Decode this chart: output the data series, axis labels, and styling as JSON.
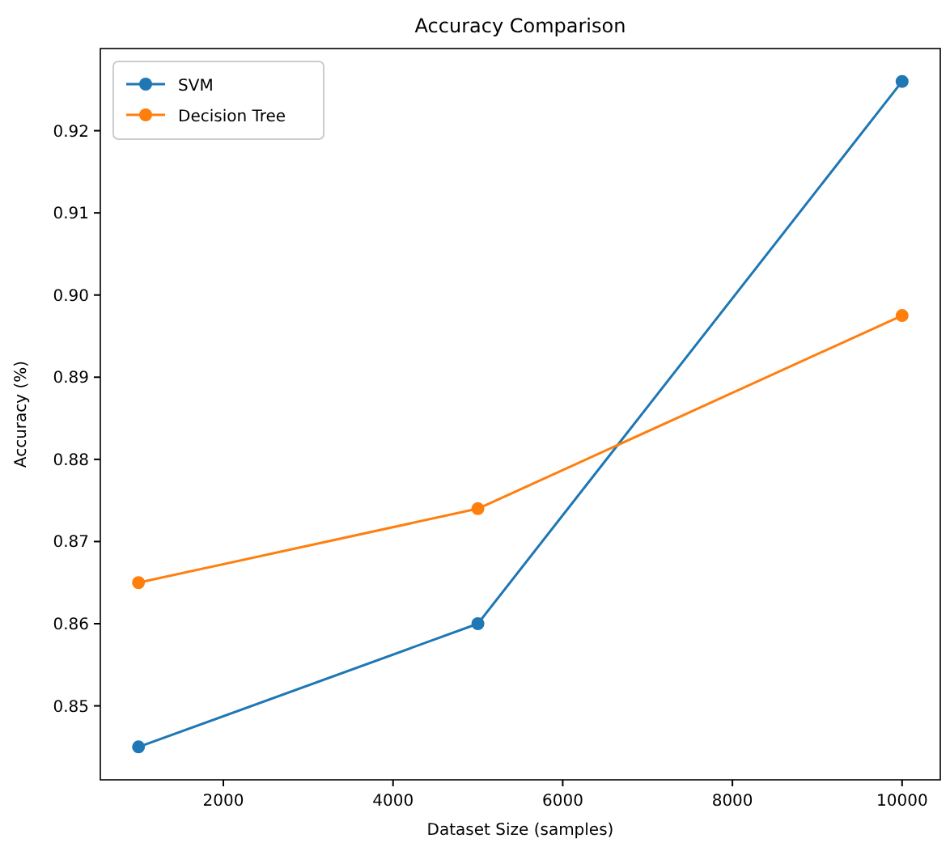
{
  "chart_data": {
    "type": "line",
    "title": "Accuracy Comparison",
    "xlabel": "Dataset Size (samples)",
    "ylabel": "Accuracy (%)",
    "x": [
      1000,
      5000,
      10000
    ],
    "series": [
      {
        "name": "SVM",
        "color": "#1f77b4",
        "values": [
          0.845,
          0.86,
          0.926
        ]
      },
      {
        "name": "Decision Tree",
        "color": "#ff7f0e",
        "values": [
          0.865,
          0.874,
          0.8975
        ]
      }
    ],
    "xlim": [
      550,
      10450
    ],
    "xticks": [
      2000,
      4000,
      6000,
      8000,
      10000
    ],
    "ylim": [
      0.841,
      0.93
    ],
    "yticks": [
      0.85,
      0.86,
      0.87,
      0.88,
      0.89,
      {
        "value": 0.9,
        "label": "0.90"
      },
      0.91,
      0.92
    ],
    "grid": false,
    "legend": "top left",
    "marker": "circle",
    "line_style": "solid"
  }
}
